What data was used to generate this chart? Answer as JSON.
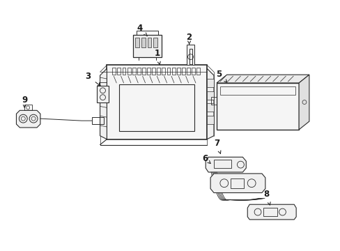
{
  "background_color": "#ffffff",
  "line_color": "#2a2a2a",
  "label_color": "#1a1a1a",
  "fig_width": 4.89,
  "fig_height": 3.6,
  "dpi": 100
}
